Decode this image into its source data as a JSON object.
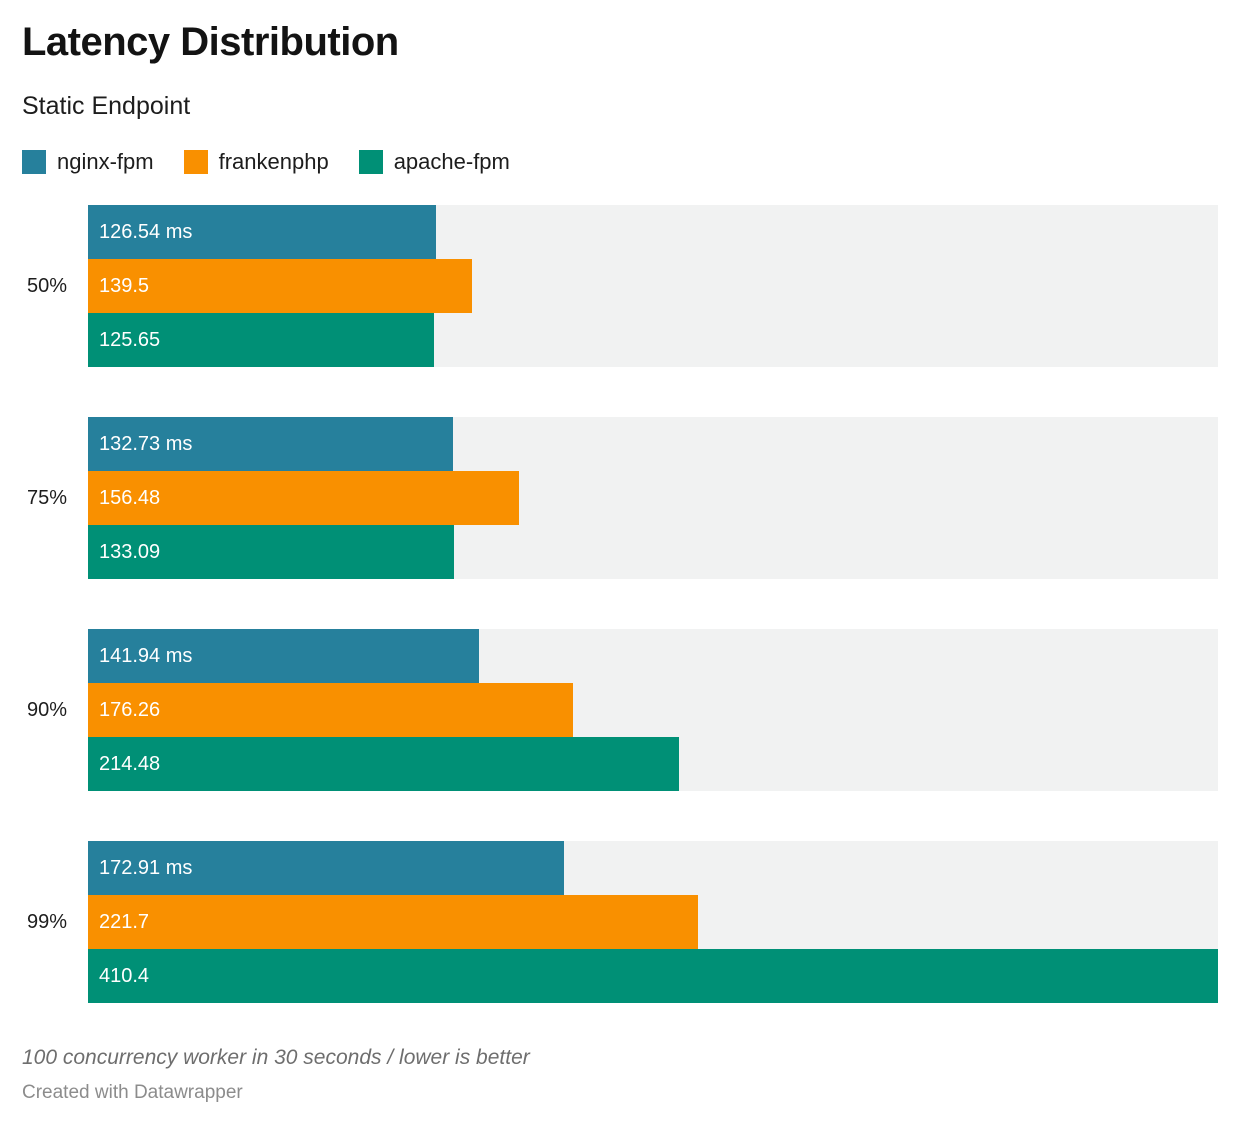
{
  "header": {
    "title": "Latency Distribution",
    "subtitle": "Static Endpoint"
  },
  "colors": {
    "nginx_fpm": "#26809c",
    "frankenphp": "#f99000",
    "apache_fpm": "#009076",
    "bar_track": "#f1f2f2"
  },
  "legend": [
    {
      "label": "nginx-fpm",
      "color": "#26809c"
    },
    {
      "label": "frankenphp",
      "color": "#f99000"
    },
    {
      "label": "apache-fpm",
      "color": "#009076"
    }
  ],
  "chart_data": {
    "type": "bar",
    "orientation": "horizontal",
    "title": "Latency Distribution",
    "subtitle": "Static Endpoint",
    "unit": "ms",
    "xlabel": "",
    "ylabel": "",
    "xlim": [
      0,
      410.4
    ],
    "xmax": 410.4,
    "grid": false,
    "legend_position": "top",
    "categories": [
      "50%",
      "75%",
      "90%",
      "99%"
    ],
    "series": [
      {
        "name": "nginx-fpm",
        "color": "#26809c",
        "values": [
          126.54,
          132.73,
          141.94,
          172.91
        ],
        "bar_labels": [
          "126.54 ms",
          "132.73 ms",
          "141.94 ms",
          "172.91 ms"
        ]
      },
      {
        "name": "frankenphp",
        "color": "#f99000",
        "values": [
          139.5,
          156.48,
          176.26,
          221.7
        ],
        "bar_labels": [
          "139.5",
          "156.48",
          "176.26",
          "221.7"
        ]
      },
      {
        "name": "apache-fpm",
        "color": "#009076",
        "values": [
          125.65,
          133.09,
          214.48,
          410.4
        ],
        "bar_labels": [
          "125.65",
          "133.09",
          "214.48",
          "410.4"
        ]
      }
    ],
    "track_color": "#f1f2f2"
  },
  "footer": {
    "note": "100 concurrency worker in 30 seconds / lower is better",
    "attribution": "Created with Datawrapper"
  }
}
